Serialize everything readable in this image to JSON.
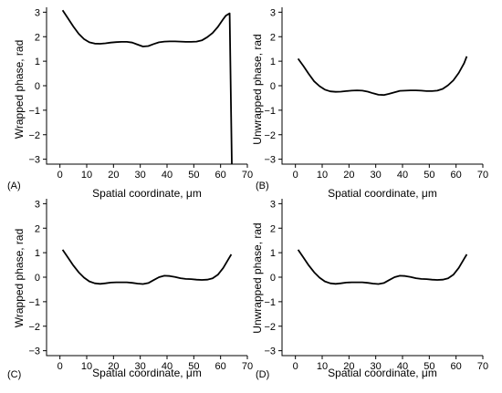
{
  "chart_data": [
    {
      "panel": "(A)",
      "type": "line",
      "xlabel": "Spatial coordinate, μm",
      "ylabel": "Wrapped phase, rad",
      "xlim": [
        -5,
        70
      ],
      "ylim": [
        -3.2,
        3.2
      ],
      "xticks": [
        0,
        10,
        20,
        30,
        40,
        50,
        60,
        70
      ],
      "yticks": [
        -3,
        -2,
        -1,
        0,
        1,
        2,
        3
      ],
      "x": [
        1,
        3,
        5,
        7,
        9,
        11,
        13,
        15,
        17,
        19,
        21,
        23,
        25,
        27,
        29,
        31,
        33,
        35,
        37,
        39,
        41,
        43,
        45,
        47,
        49,
        51,
        53,
        55,
        57,
        59,
        61,
        62,
        63,
        63.4,
        64.2
      ],
      "y": [
        3.08,
        2.75,
        2.42,
        2.12,
        1.9,
        1.77,
        1.72,
        1.71,
        1.73,
        1.76,
        1.78,
        1.79,
        1.79,
        1.76,
        1.68,
        1.6,
        1.62,
        1.7,
        1.77,
        1.8,
        1.81,
        1.81,
        1.8,
        1.79,
        1.79,
        1.8,
        1.85,
        1.98,
        2.15,
        2.4,
        2.72,
        2.86,
        2.93,
        2.95,
        -3.2
      ]
    },
    {
      "panel": "(B)",
      "type": "line",
      "xlabel": "Spatial coordinate, μm",
      "ylabel": "Unwrapped phase, rad",
      "xlim": [
        -5,
        70
      ],
      "ylim": [
        -3.2,
        3.2
      ],
      "xticks": [
        0,
        10,
        20,
        30,
        40,
        50,
        60,
        70
      ],
      "yticks": [
        -3,
        -2,
        -1,
        0,
        1,
        2,
        3
      ],
      "x": [
        1,
        3,
        5,
        7,
        9,
        11,
        13,
        15,
        17,
        19,
        21,
        23,
        25,
        27,
        29,
        31,
        33,
        35,
        37,
        39,
        41,
        43,
        45,
        47,
        49,
        51,
        53,
        55,
        57,
        59,
        61,
        63,
        64
      ],
      "y": [
        1.1,
        0.8,
        0.48,
        0.18,
        -0.02,
        -0.16,
        -0.23,
        -0.25,
        -0.24,
        -0.22,
        -0.2,
        -0.19,
        -0.2,
        -0.24,
        -0.31,
        -0.37,
        -0.38,
        -0.33,
        -0.27,
        -0.21,
        -0.2,
        -0.19,
        -0.19,
        -0.2,
        -0.22,
        -0.22,
        -0.2,
        -0.13,
        0.02,
        0.22,
        0.52,
        0.92,
        1.2
      ]
    },
    {
      "panel": "(C)",
      "type": "line",
      "xlabel": "Spatial coordinate, μm",
      "ylabel": "Wrapped phase, rad",
      "xlim": [
        -5,
        70
      ],
      "ylim": [
        -3.2,
        3.2
      ],
      "xticks": [
        0,
        10,
        20,
        30,
        40,
        50,
        60,
        70
      ],
      "yticks": [
        -3,
        -2,
        -1,
        0,
        1,
        2,
        3
      ],
      "x": [
        1,
        3,
        5,
        7,
        9,
        11,
        13,
        15,
        17,
        19,
        21,
        23,
        25,
        27,
        29,
        31,
        33,
        35,
        37,
        39,
        41,
        43,
        45,
        47,
        49,
        51,
        53,
        55,
        57,
        59,
        61,
        63,
        64
      ],
      "y": [
        1.12,
        0.8,
        0.48,
        0.2,
        -0.02,
        -0.17,
        -0.25,
        -0.27,
        -0.25,
        -0.22,
        -0.21,
        -0.21,
        -0.21,
        -0.23,
        -0.26,
        -0.28,
        -0.24,
        -0.12,
        0.0,
        0.06,
        0.05,
        0.01,
        -0.04,
        -0.07,
        -0.08,
        -0.1,
        -0.11,
        -0.1,
        -0.05,
        0.1,
        0.38,
        0.75,
        0.93
      ]
    },
    {
      "panel": "(D)",
      "type": "line",
      "xlabel": "Spatial coordinate, μm",
      "ylabel": "Unwrapped phase, rad",
      "xlim": [
        -5,
        70
      ],
      "ylim": [
        -3.2,
        3.2
      ],
      "xticks": [
        0,
        10,
        20,
        30,
        40,
        50,
        60,
        70
      ],
      "yticks": [
        -3,
        -2,
        -1,
        0,
        1,
        2,
        3
      ],
      "x": [
        1,
        3,
        5,
        7,
        9,
        11,
        13,
        15,
        17,
        19,
        21,
        23,
        25,
        27,
        29,
        31,
        33,
        35,
        37,
        39,
        41,
        43,
        45,
        47,
        49,
        51,
        53,
        55,
        57,
        59,
        61,
        63,
        64
      ],
      "y": [
        1.12,
        0.8,
        0.48,
        0.2,
        -0.02,
        -0.17,
        -0.25,
        -0.27,
        -0.25,
        -0.22,
        -0.21,
        -0.21,
        -0.21,
        -0.23,
        -0.26,
        -0.28,
        -0.24,
        -0.12,
        0.0,
        0.06,
        0.05,
        0.01,
        -0.04,
        -0.07,
        -0.08,
        -0.1,
        -0.11,
        -0.1,
        -0.05,
        0.1,
        0.38,
        0.75,
        0.93
      ]
    }
  ]
}
